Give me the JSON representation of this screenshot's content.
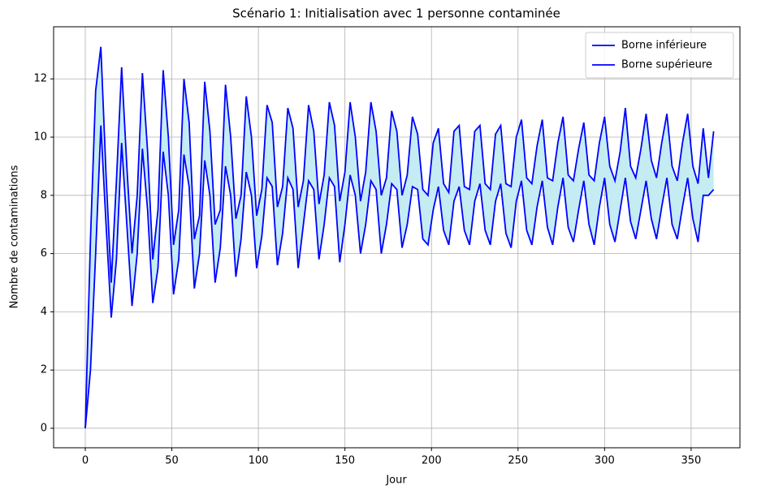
{
  "chart_data": {
    "type": "line",
    "title": "Scénario 1: Initialisation avec 1 personne contaminée",
    "xlabel": "Jour",
    "ylabel": "Nombre de contaminations",
    "x": [
      0,
      3,
      6,
      9,
      12,
      15,
      18,
      21,
      24,
      27,
      30,
      33,
      36,
      39,
      42,
      45,
      48,
      51,
      54,
      57,
      60,
      63,
      66,
      69,
      72,
      75,
      78,
      81,
      84,
      87,
      90,
      93,
      96,
      99,
      102,
      105,
      108,
      111,
      114,
      117,
      120,
      123,
      126,
      129,
      132,
      135,
      138,
      141,
      144,
      147,
      150,
      153,
      156,
      159,
      162,
      165,
      168,
      171,
      174,
      177,
      180,
      183,
      186,
      189,
      192,
      195,
      198,
      201,
      204,
      207,
      210,
      213,
      216,
      219,
      222,
      225,
      228,
      231,
      234,
      237,
      240,
      243,
      246,
      249,
      252,
      255,
      258,
      261,
      264,
      267,
      270,
      273,
      276,
      279,
      282,
      285,
      288,
      291,
      294,
      297,
      300,
      303,
      306,
      309,
      312,
      315,
      318,
      321,
      324,
      327,
      330,
      333,
      336,
      339,
      342,
      345,
      348,
      351,
      354,
      357,
      360,
      363
    ],
    "series": [
      {
        "name": "Borne inférieure",
        "color": "#0000ff",
        "values": [
          0,
          2.0,
          6.0,
          10.4,
          7.0,
          3.8,
          5.8,
          9.8,
          7.0,
          4.2,
          6.0,
          9.6,
          7.5,
          4.3,
          5.5,
          9.5,
          8.0,
          4.6,
          5.8,
          9.4,
          8.3,
          4.8,
          6.0,
          9.2,
          8.0,
          5.0,
          6.2,
          9.0,
          8.0,
          5.2,
          6.5,
          8.8,
          8.0,
          5.5,
          6.6,
          8.6,
          8.3,
          5.6,
          6.7,
          8.6,
          8.2,
          5.5,
          7.0,
          8.5,
          8.2,
          5.8,
          7.0,
          8.6,
          8.3,
          5.7,
          7.0,
          8.7,
          8.0,
          6.0,
          7.0,
          8.5,
          8.2,
          6.0,
          7.0,
          8.4,
          8.2,
          6.2,
          7.0,
          8.3,
          8.2,
          6.5,
          6.3,
          7.5,
          8.3,
          6.8,
          6.3,
          7.8,
          8.3,
          6.8,
          6.3,
          7.8,
          8.4,
          6.8,
          6.3,
          7.8,
          8.4,
          6.7,
          6.2,
          7.8,
          8.5,
          6.8,
          6.3,
          7.6,
          8.5,
          6.9,
          6.3,
          7.6,
          8.6,
          6.9,
          6.4,
          7.5,
          8.5,
          7.0,
          6.3,
          7.6,
          8.6,
          7.0,
          6.4,
          7.5,
          8.6,
          7.1,
          6.5,
          7.5,
          8.5,
          7.2,
          6.5,
          7.6,
          8.6,
          7.0,
          6.5,
          7.6,
          8.6,
          7.2,
          6.4,
          8.0,
          8.0,
          8.2
        ]
      },
      {
        "name": "Borne supérieure",
        "color": "#0000ff",
        "values": [
          0,
          6.5,
          11.6,
          13.1,
          8.7,
          5.0,
          8.5,
          12.4,
          9.0,
          6.0,
          8.0,
          12.2,
          9.5,
          5.8,
          7.5,
          12.3,
          10.0,
          6.3,
          7.5,
          12.0,
          10.5,
          6.5,
          7.3,
          11.9,
          10.2,
          7.0,
          7.5,
          11.8,
          10.0,
          7.2,
          8.0,
          11.4,
          10.0,
          7.3,
          8.2,
          11.1,
          10.5,
          7.6,
          8.3,
          11.0,
          10.3,
          7.6,
          8.5,
          11.1,
          10.2,
          7.7,
          8.7,
          11.2,
          10.4,
          7.8,
          8.8,
          11.2,
          10.0,
          7.8,
          8.8,
          11.2,
          10.2,
          8.0,
          8.6,
          10.9,
          10.2,
          8.0,
          8.7,
          10.7,
          10.1,
          8.2,
          8.0,
          9.8,
          10.3,
          8.4,
          8.1,
          10.2,
          10.4,
          8.3,
          8.2,
          10.2,
          10.4,
          8.4,
          8.2,
          10.1,
          10.4,
          8.4,
          8.3,
          10.0,
          10.6,
          8.6,
          8.4,
          9.7,
          10.6,
          8.6,
          8.5,
          9.8,
          10.7,
          8.7,
          8.5,
          9.6,
          10.5,
          8.7,
          8.5,
          9.8,
          10.7,
          9.0,
          8.5,
          9.5,
          11.0,
          9.0,
          8.6,
          9.6,
          10.8,
          9.2,
          8.6,
          9.8,
          10.8,
          9.0,
          8.5,
          9.8,
          10.8,
          9.0,
          8.4,
          10.3,
          8.6,
          10.2
        ]
      }
    ],
    "fill_color": "#c4ecf2",
    "xlim": [
      -18.3,
      378.2
    ],
    "ylim": [
      -0.67,
      13.79
    ],
    "xticks": [
      0,
      50,
      100,
      150,
      200,
      250,
      300,
      350
    ],
    "yticks": [
      0,
      2,
      4,
      6,
      8,
      10,
      12
    ],
    "grid": true,
    "legend": "upper right"
  }
}
